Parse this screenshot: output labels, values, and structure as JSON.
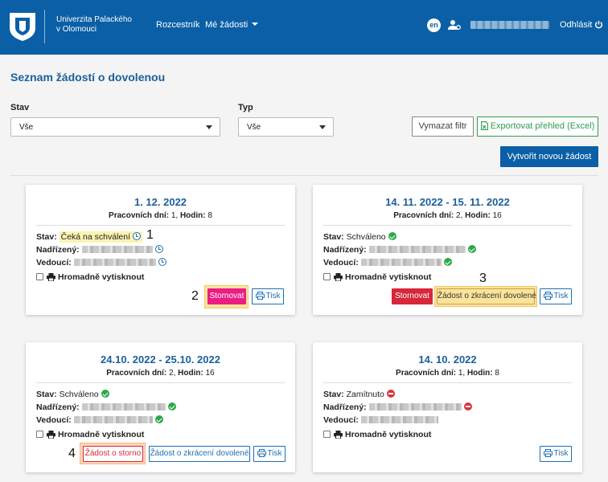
{
  "header": {
    "uni_line1": "Univerzita Palackého",
    "uni_line2": "v Olomouci",
    "nav_roz": "Rozcestník",
    "nav_moje": "Mé žádosti",
    "lang": "en",
    "logout": "Odhlásit",
    "bg_color": "#0a5fa6"
  },
  "page_title": "Seznam žádostí o dovolenou",
  "filters": {
    "stav_label": "Stav",
    "stav_value": "Vše",
    "typ_label": "Typ",
    "typ_value": "Vše",
    "clear_label": "Vymazat filtr",
    "export_label": "Exportovat přehled (Excel)",
    "create_label": "Vytvořit novou žádost"
  },
  "labels": {
    "stav": "Stav:",
    "nadrizeny": "Nadřízený:",
    "vedouci": "Vedoucí:",
    "bulk": "Hromadně vytisknout",
    "pracovnich": "Pracovních dní:",
    "hodin": "Hodin:"
  },
  "cards": [
    {
      "date": "1. 12. 2022",
      "days": "1",
      "hours": "8",
      "status": "Čeká na schválení",
      "actions": {
        "stornovat": "Stornovat",
        "tisk": "Tisk"
      },
      "marker": "1",
      "marker2": "2"
    },
    {
      "date": "14. 11. 2022 - 15. 11. 2022",
      "days": "2",
      "hours": "16",
      "status": "Schváleno",
      "actions": {
        "stornovat": "Stornovat",
        "zkraceni": "Žádost o zkrácení dovolené",
        "tisk": "Tisk"
      },
      "marker": "3"
    },
    {
      "date": "24.10. 2022 - 25.10. 2022",
      "days": "2",
      "hours": "16",
      "status": "Schváleno",
      "actions": {
        "storno": "Žádost o storno",
        "zkraceni": "Žádost o zkrácení dovolené",
        "tisk": "Tisk"
      },
      "marker": "4"
    },
    {
      "date": "14. 10. 2022",
      "days": "1",
      "hours": "8",
      "status": "Zamítnuto",
      "actions": {
        "tisk": "Tisk"
      }
    }
  ]
}
